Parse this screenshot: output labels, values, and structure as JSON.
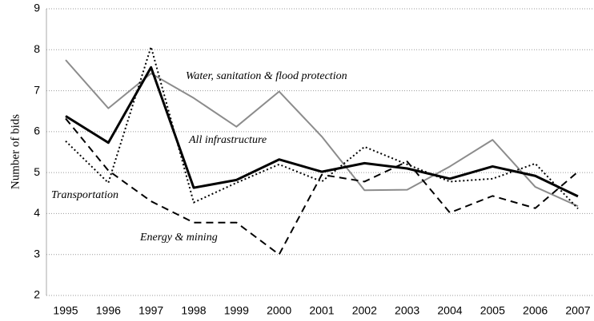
{
  "chart_data": {
    "type": "line",
    "y_label": "Number of bids",
    "categories": [
      "1995",
      "1996",
      "1997",
      "1998",
      "1999",
      "2000",
      "2001",
      "2002",
      "2003",
      "2004",
      "2005",
      "2006",
      "2007"
    ],
    "ylim": [
      2,
      9
    ],
    "yticks": [
      2,
      3,
      4,
      5,
      6,
      7,
      8,
      9
    ],
    "grid": true,
    "series": [
      {
        "name": "Water, sanitation & flood protection",
        "color": "#8c8c8c",
        "dash": "solid",
        "width": 2,
        "values": [
          7.75,
          6.57,
          7.42,
          6.82,
          6.12,
          6.98,
          5.88,
          4.57,
          4.58,
          5.15,
          5.8,
          4.65,
          4.18
        ]
      },
      {
        "name": "All infrastructure",
        "color": "#000000",
        "dash": "solid",
        "width": 3,
        "values": [
          6.38,
          5.73,
          7.57,
          4.63,
          4.82,
          5.32,
          5.02,
          5.23,
          5.1,
          4.85,
          5.15,
          4.92,
          4.42
        ]
      },
      {
        "name": "Transportation",
        "color": "#000000",
        "dash": "dotted",
        "width": 2,
        "values": [
          5.77,
          4.75,
          8.07,
          4.27,
          4.75,
          5.2,
          4.78,
          5.63,
          5.2,
          4.78,
          4.85,
          5.22,
          4.12
        ]
      },
      {
        "name": "Energy & mining",
        "color": "#000000",
        "dash": "dashed",
        "width": 2,
        "values": [
          6.32,
          5.05,
          4.3,
          3.78,
          3.78,
          3.0,
          4.95,
          4.78,
          5.27,
          4.02,
          4.43,
          4.13,
          5.02
        ]
      }
    ]
  }
}
